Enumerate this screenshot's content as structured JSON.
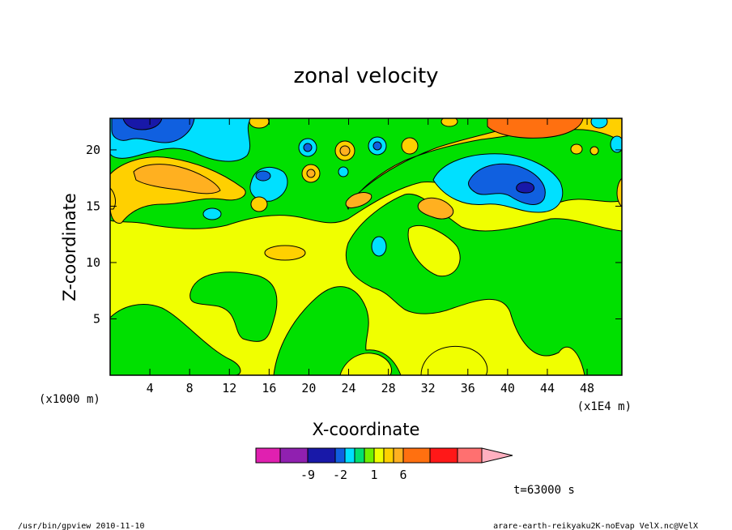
{
  "chart_data": {
    "type": "heatmap",
    "title": "zonal velocity",
    "xlabel": "X-coordinate",
    "ylabel": "Z-coordinate",
    "x_unit_left": "(x1000 m)",
    "x_unit_right": "(x1E4 m)",
    "x_ticks": [
      4,
      8,
      12,
      16,
      20,
      24,
      28,
      32,
      36,
      40,
      44,
      48
    ],
    "y_ticks": [
      5,
      10,
      15,
      20
    ],
    "xlim": [
      0,
      51.5
    ],
    "ylim": [
      0,
      22.8
    ],
    "colorbar": {
      "colors": [
        "#e020b0",
        "#9020b0",
        "#1818a8",
        "#1060e0",
        "#00e0ff",
        "#00e070",
        "#70f000",
        "#f0ff00",
        "#ffd000",
        "#ffb020",
        "#ff7010",
        "#ff1818",
        "#ff7070",
        "#ffb0c0"
      ],
      "labels": [
        {
          "text": "-9",
          "index": 1
        },
        {
          "text": "-2",
          "index": 3.5
        },
        {
          "text": "1",
          "index": 6
        },
        {
          "text": "6",
          "index": 9
        }
      ]
    },
    "time_label": "t=63000 s"
  },
  "footer": {
    "left": "/usr/bin/gpview   2010-11-10",
    "right": "arare-earth-reikyaku2K-noEvap_VelX.nc@VelX"
  },
  "colors": {
    "yellow": "#f0ff00",
    "green": "#00e000",
    "lightgreen": "#70f000",
    "cyan": "#00e0ff",
    "blue": "#1060e0",
    "navy": "#1818a8",
    "gold": "#ffd000",
    "amber": "#ffb020",
    "orange": "#ff7010"
  }
}
